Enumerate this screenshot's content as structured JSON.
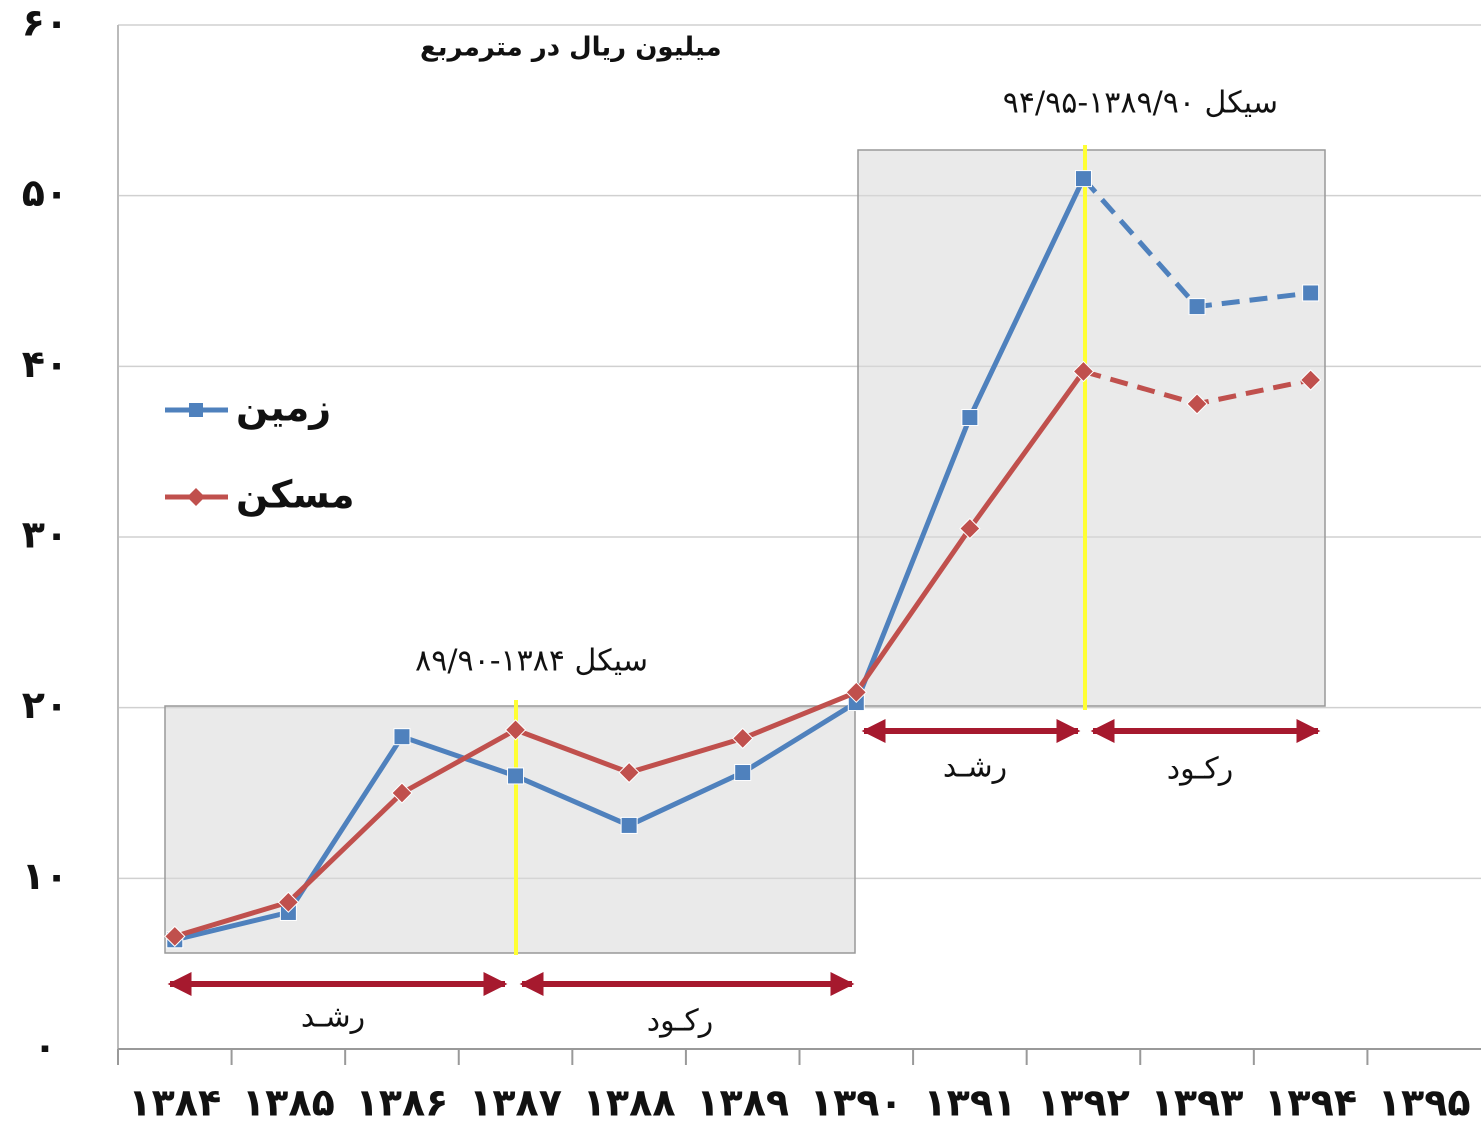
{
  "chart_data": {
    "type": "line",
    "y_axis_label": "میلیون ریال در مترمربع",
    "categories": [
      "۱۳۸۴",
      "۱۳۸۵",
      "۱۳۸۶",
      "۱۳۸۷",
      "۱۳۸۸",
      "۱۳۸۹",
      "۱۳۹۰",
      "۱۳۹۱",
      "۱۳۹۲",
      "۱۳۹۳",
      "۱۳۹۴",
      "۱۳۹۵"
    ],
    "series": [
      {
        "name": "زمین",
        "color": "#4f81bd",
        "marker": "square",
        "values": [
          6.4,
          8.0,
          18.3,
          16.0,
          13.1,
          16.2,
          20.3,
          37.0,
          51.0,
          43.5,
          44.3,
          null
        ]
      },
      {
        "name": "مسکن",
        "color": "#c0504d",
        "marker": "diamond",
        "values": [
          6.6,
          8.6,
          15.0,
          18.7,
          16.2,
          18.2,
          20.9,
          30.5,
          39.7,
          37.8,
          39.2,
          null
        ]
      }
    ],
    "dash_start": 8,
    "ylim": [
      0,
      60
    ],
    "yticks": [
      {
        "value": 0,
        "label": "۰"
      },
      {
        "value": 10,
        "label": "۱۰"
      },
      {
        "value": 20,
        "label": "۲۰"
      },
      {
        "value": 30,
        "label": "۳۰"
      },
      {
        "value": 40,
        "label": "۴۰"
      },
      {
        "value": 50,
        "label": "۵۰"
      },
      {
        "value": 60,
        "label": "۶۰"
      }
    ],
    "grid": true,
    "annotations": {
      "cycle_1": "سیکل ۱۳۸۴-۸۹/۹۰",
      "cycle_2": "سیکل ۱۳۸۹/۹۰-۹۴/۹۵",
      "growth_1": "رشـد",
      "recession_1": "رکـود",
      "growth_2": "رشـد",
      "recession_2": "رکـود"
    }
  }
}
